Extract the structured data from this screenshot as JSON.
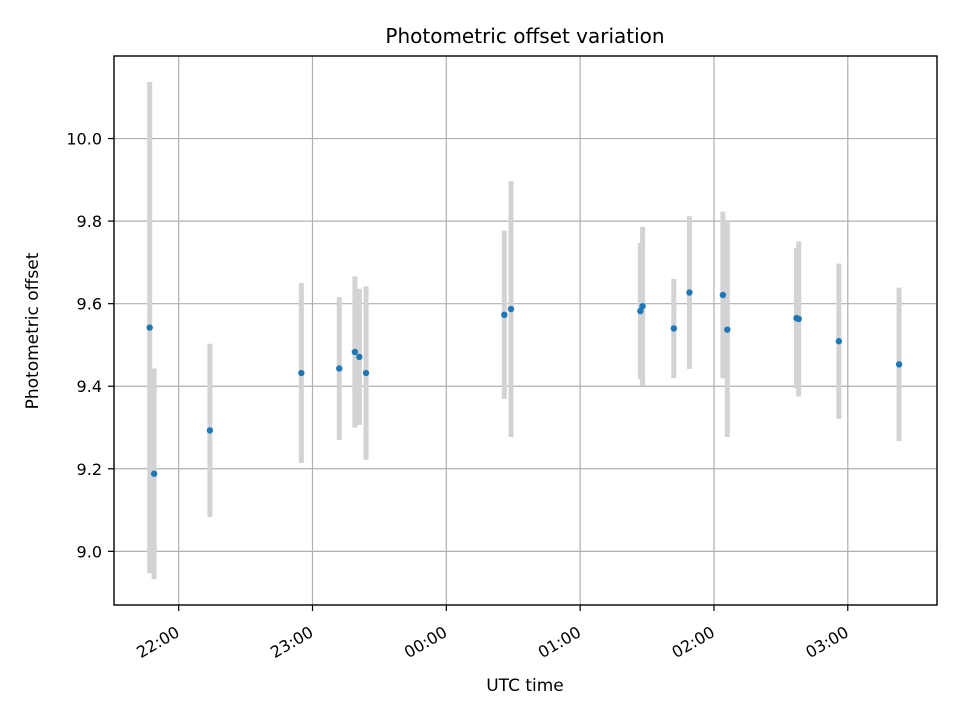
{
  "chart_data": {
    "type": "scatter",
    "title": "Photometric offset variation",
    "xlabel": "UTC time",
    "ylabel": "Photometric offset",
    "x_axis_type": "time",
    "xlim": [
      "21:31",
      "03:40"
    ],
    "ylim": [
      8.87,
      10.2
    ],
    "grid": true,
    "x_ticks": [
      "22:00",
      "23:00",
      "00:00",
      "01:00",
      "02:00",
      "03:00"
    ],
    "y_ticks": [
      9.0,
      9.2,
      9.4,
      9.6,
      9.8,
      10.0
    ],
    "y_tick_labels": [
      "9.0",
      "9.2",
      "9.4",
      "9.6",
      "9.8",
      "10.0"
    ],
    "colors": {
      "point": "#1f77b4",
      "errorbar": "#d3d3d3",
      "grid": "#b0b0b0"
    },
    "points": [
      {
        "time": "21:47",
        "y": 9.542,
        "yerr": 0.595
      },
      {
        "time": "21:49",
        "y": 9.188,
        "yerr": 0.255
      },
      {
        "time": "22:14",
        "y": 9.293,
        "yerr": 0.21
      },
      {
        "time": "22:55",
        "y": 9.432,
        "yerr": 0.218
      },
      {
        "time": "23:12",
        "y": 9.443,
        "yerr": 0.173
      },
      {
        "time": "23:19",
        "y": 9.483,
        "yerr": 0.183
      },
      {
        "time": "23:21",
        "y": 9.471,
        "yerr": 0.165
      },
      {
        "time": "23:24",
        "y": 9.432,
        "yerr": 0.21
      },
      {
        "time": "00:26",
        "y": 9.573,
        "yerr": 0.204
      },
      {
        "time": "00:29",
        "y": 9.587,
        "yerr": 0.31
      },
      {
        "time": "01:27",
        "y": 9.582,
        "yerr": 0.165
      },
      {
        "time": "01:28",
        "y": 9.594,
        "yerr": 0.192
      },
      {
        "time": "01:42",
        "y": 9.54,
        "yerr": 0.12
      },
      {
        "time": "01:49",
        "y": 9.627,
        "yerr": 0.185
      },
      {
        "time": "02:04",
        "y": 9.621,
        "yerr": 0.202
      },
      {
        "time": "02:06",
        "y": 9.537,
        "yerr": 0.26
      },
      {
        "time": "02:37",
        "y": 9.565,
        "yerr": 0.17
      },
      {
        "time": "02:38",
        "y": 9.563,
        "yerr": 0.188
      },
      {
        "time": "02:56",
        "y": 9.509,
        "yerr": 0.188
      },
      {
        "time": "03:23",
        "y": 9.453,
        "yerr": 0.186
      }
    ]
  }
}
